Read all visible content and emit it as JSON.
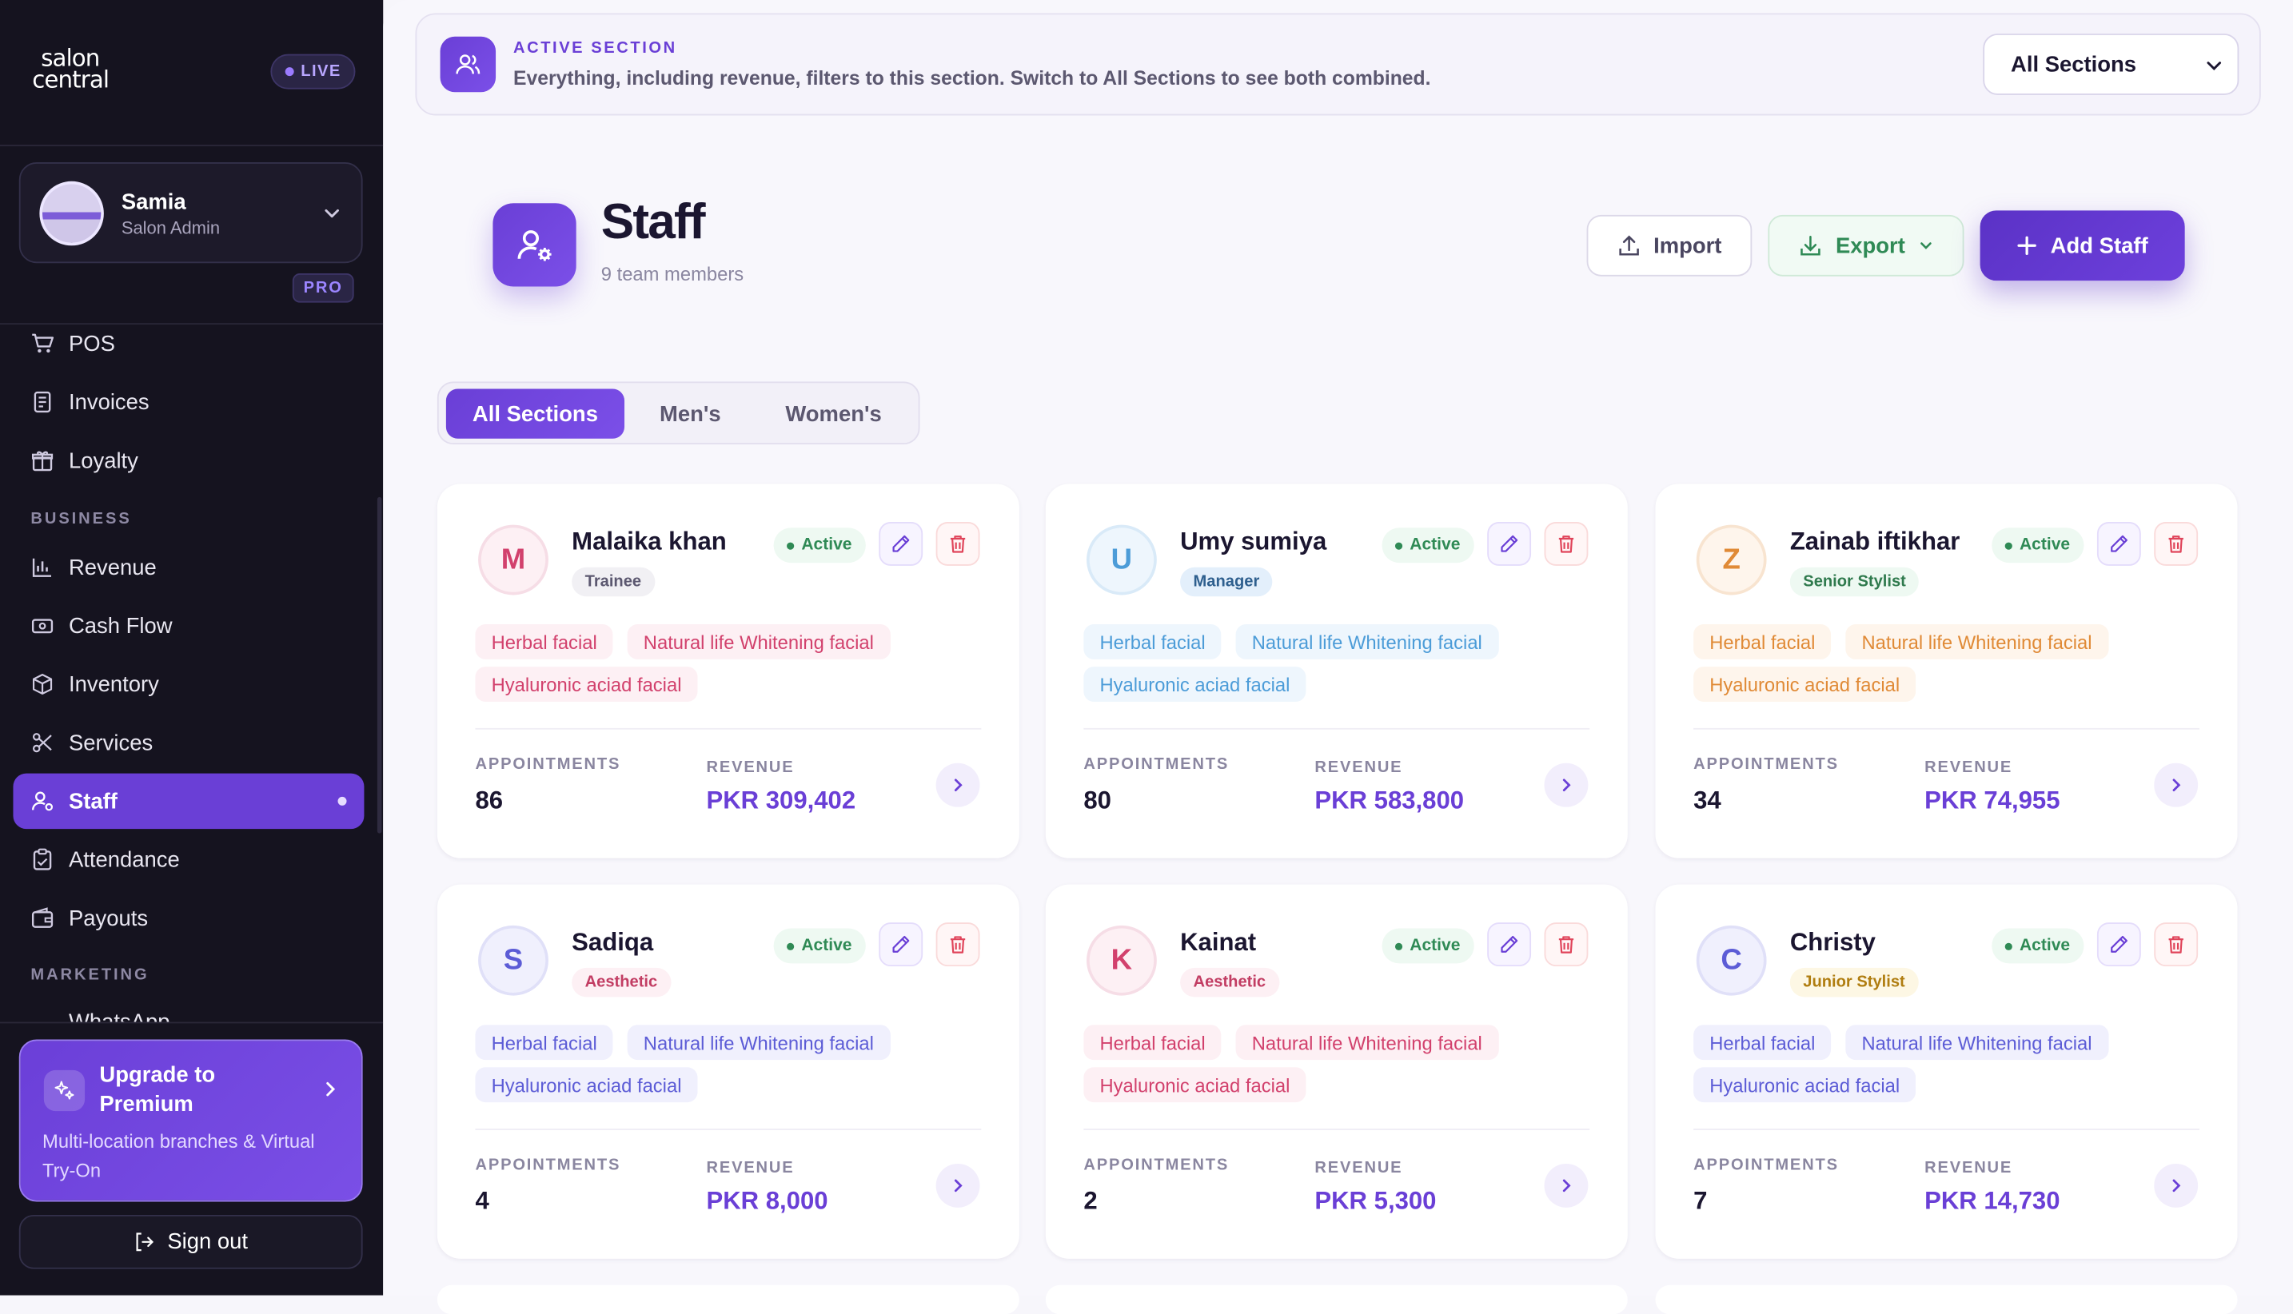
{
  "sidebar": {
    "logo_line1": "salon",
    "logo_line2": "central",
    "live_badge": "LIVE",
    "profile": {
      "name": "Samia",
      "role": "Salon Admin"
    },
    "plan_badge": "PRO",
    "items_top": [
      {
        "label": "POS",
        "icon": "cart-icon"
      },
      {
        "label": "Invoices",
        "icon": "invoice-icon"
      },
      {
        "label": "Loyalty",
        "icon": "gift-icon"
      }
    ],
    "section_business": "BUSINESS",
    "items_business": [
      {
        "label": "Revenue",
        "icon": "bar-chart-icon"
      },
      {
        "label": "Cash Flow",
        "icon": "cash-icon"
      },
      {
        "label": "Inventory",
        "icon": "box-icon"
      },
      {
        "label": "Services",
        "icon": "scissors-icon"
      },
      {
        "label": "Staff",
        "icon": "staff-icon",
        "active": true
      },
      {
        "label": "Attendance",
        "icon": "clipboard-icon"
      },
      {
        "label": "Payouts",
        "icon": "wallet-icon"
      }
    ],
    "section_marketing": "MARKETING",
    "item_cut": "WhatsApp",
    "upgrade": {
      "title": "Upgrade to Premium",
      "description": "Multi-location branches & Virtual Try-On"
    },
    "signout_label": "Sign out"
  },
  "banner": {
    "kicker": "ACTIVE SECTION",
    "text": "Everything, including revenue, filters to this section. Switch to All Sections to see both combined.",
    "select_value": "All Sections"
  },
  "header": {
    "title": "Staff",
    "subtitle": "9 team members",
    "import_label": "Import",
    "export_label": "Export",
    "add_label": "Add Staff"
  },
  "tabs": [
    "All Sections",
    "Men's",
    "Women's"
  ],
  "labels": {
    "appointments": "APPOINTMENTS",
    "revenue": "REVENUE",
    "status_active": "Active"
  },
  "staff": [
    {
      "initial": "M",
      "name": "Malaika khan",
      "role": "Trainee",
      "tags": [
        "Herbal facial",
        "Natural life Whitening facial",
        "Hyaluronic aciad facial"
      ],
      "appointments": "86",
      "revenue": "PKR 309,402"
    },
    {
      "initial": "U",
      "name": "Umy sumiya",
      "role": "Manager",
      "tags": [
        "Herbal facial",
        "Natural life Whitening facial",
        "Hyaluronic aciad facial"
      ],
      "appointments": "80",
      "revenue": "PKR 583,800"
    },
    {
      "initial": "Z",
      "name": "Zainab iftikhar",
      "role": "Senior Stylist",
      "tags": [
        "Herbal facial",
        "Natural life Whitening facial",
        "Hyaluronic aciad facial"
      ],
      "appointments": "34",
      "revenue": "PKR 74,955"
    },
    {
      "initial": "S",
      "name": "Sadiqa",
      "role": "Aesthetic",
      "tags": [
        "Herbal facial",
        "Natural life Whitening facial",
        "Hyaluronic aciad facial"
      ],
      "appointments": "4",
      "revenue": "PKR 8,000"
    },
    {
      "initial": "K",
      "name": "Kainat",
      "role": "Aesthetic",
      "tags": [
        "Herbal facial",
        "Natural life Whitening facial",
        "Hyaluronic aciad facial"
      ],
      "appointments": "2",
      "revenue": "PKR 5,300"
    },
    {
      "initial": "C",
      "name": "Christy",
      "role": "Junior Stylist",
      "tags": [
        "Herbal facial",
        "Natural life Whitening facial",
        "Hyaluronic aciad facial"
      ],
      "appointments": "7",
      "revenue": "PKR 14,730"
    }
  ],
  "colors": {
    "accent": "#6a3fd6",
    "sidebar_bg": "#15131f",
    "success": "#2f8a55",
    "danger": "#e0445a"
  }
}
